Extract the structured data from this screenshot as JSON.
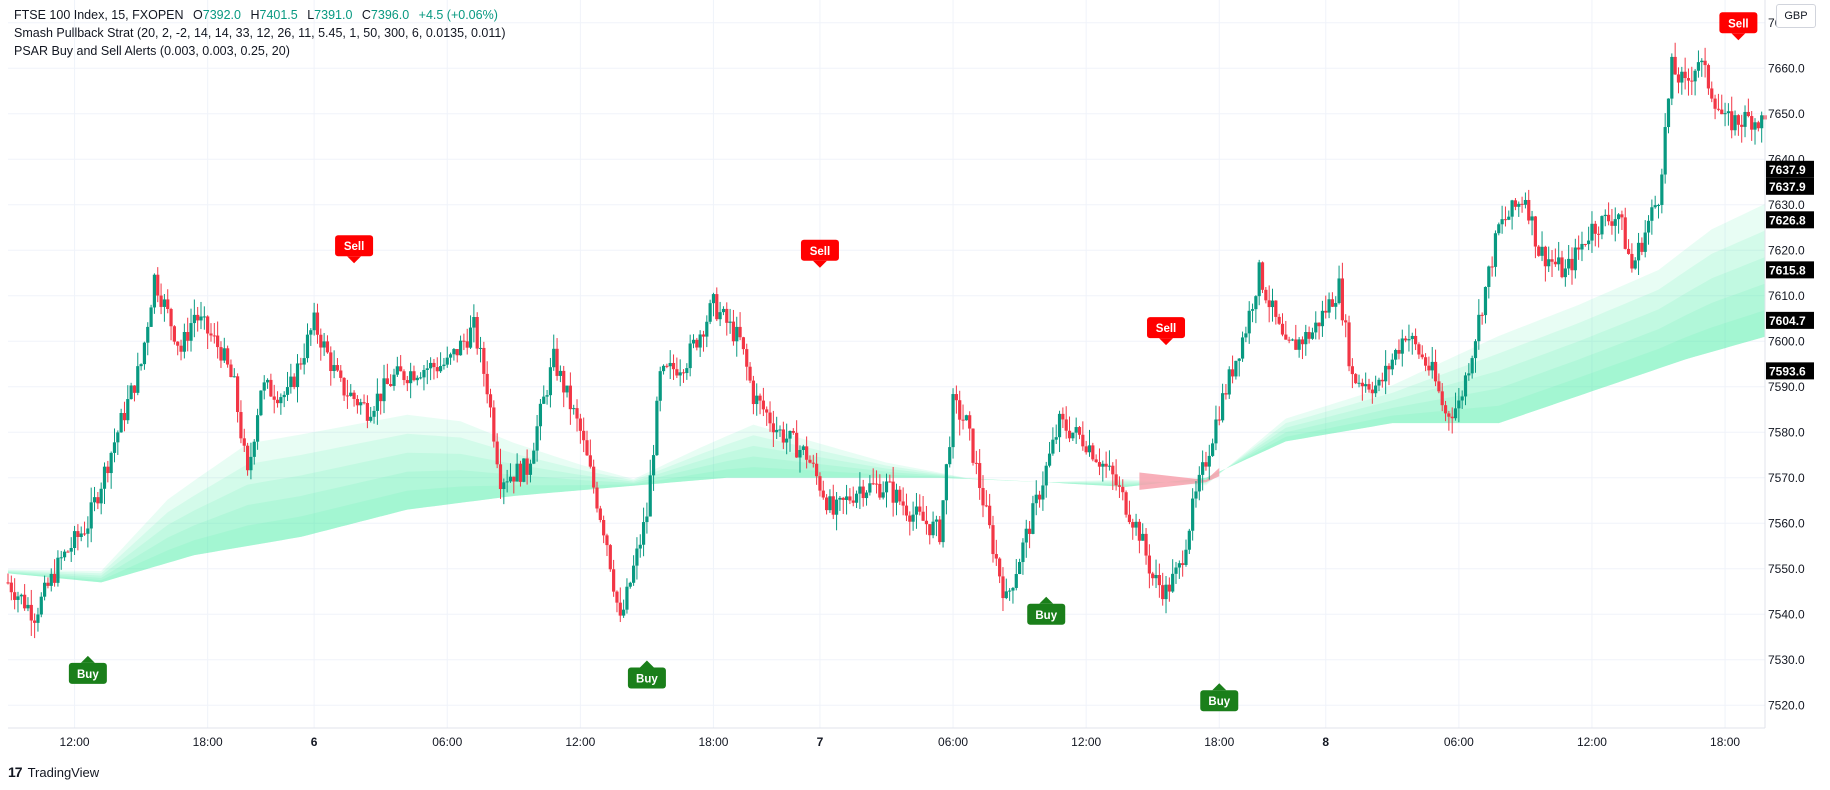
{
  "legend": {
    "symbol": "FTSE 100 Index, 15, FXOPEN",
    "open_label": "O",
    "open": "7392.0",
    "high_label": "H",
    "high": "7401.5",
    "low_label": "L",
    "low": "7391.0",
    "close_label": "C",
    "close": "7396.0",
    "change": "+4.5 (+0.06%)",
    "indicator1": "Smash Pullback Strat (20, 2, -2, 14, 14, 33, 12, 26, 11, 5.45, 1, 50, 300, 6, 0.0135, 0.011)",
    "indicator2": "PSAR Buy and Sell Alerts (0.003, 0.003, 0.25, 20)"
  },
  "currency": "GBP",
  "watermark": "TradingView",
  "colors": {
    "up": "#089981",
    "down": "#f23645",
    "band": "#3ef2a8",
    "band_red": "#f7a1ad",
    "buy": "#1a7f1a",
    "sell": "#ff0000",
    "grid": "#f0f3fa",
    "axis_text": "#131722"
  },
  "chart_data": {
    "type": "candlestick",
    "title": "FTSE 100 Index, 15, FXOPEN",
    "timeframe": "15",
    "ylim": [
      7515,
      7675
    ],
    "y_ticks": [
      7520,
      7530,
      7540,
      7550,
      7560,
      7570,
      7580,
      7590,
      7600,
      7610,
      7620,
      7630,
      7640,
      7650,
      7660,
      7670
    ],
    "y_tick_labels": [
      "7520.0",
      "7530.0",
      "7540.0",
      "7550.0",
      "7560.0",
      "7570.0",
      "7580.0",
      "7590.0",
      "7600.0",
      "7610.0",
      "7620.0",
      "7630.0",
      "7640.0",
      "7650.0",
      "7660.0",
      "7670.0"
    ],
    "x_range": [
      0,
      132
    ],
    "x_ticks": [
      {
        "t": 5,
        "label": "12:00"
      },
      {
        "t": 15,
        "label": "18:00"
      },
      {
        "t": 23,
        "label": "6"
      },
      {
        "t": 33,
        "label": "06:00"
      },
      {
        "t": 43,
        "label": "12:00"
      },
      {
        "t": 53,
        "label": "18:00"
      },
      {
        "t": 61,
        "label": "7"
      },
      {
        "t": 71,
        "label": "06:00"
      },
      {
        "t": 81,
        "label": "12:00"
      },
      {
        "t": 91,
        "label": "18:00"
      },
      {
        "t": 99,
        "label": "8"
      },
      {
        "t": 109,
        "label": "06:00"
      },
      {
        "t": 119,
        "label": "12:00"
      },
      {
        "t": 129,
        "label": "18:00"
      }
    ],
    "price_path": [
      [
        0,
        7547
      ],
      [
        2,
        7540
      ],
      [
        4,
        7552
      ],
      [
        6,
        7560
      ],
      [
        8,
        7578
      ],
      [
        10,
        7595
      ],
      [
        11,
        7614
      ],
      [
        13,
        7598
      ],
      [
        14,
        7606
      ],
      [
        16,
        7598
      ],
      [
        17,
        7590
      ],
      [
        18,
        7570
      ],
      [
        19,
        7590
      ],
      [
        21,
        7588
      ],
      [
        23,
        7604
      ],
      [
        25,
        7590
      ],
      [
        27,
        7585
      ],
      [
        29,
        7592
      ],
      [
        31,
        7594
      ],
      [
        33,
        7595
      ],
      [
        35,
        7603
      ],
      [
        36,
        7590
      ],
      [
        37,
        7570
      ],
      [
        39,
        7572
      ],
      [
        41,
        7596
      ],
      [
        43,
        7580
      ],
      [
        45,
        7556
      ],
      [
        46,
        7538
      ],
      [
        48,
        7562
      ],
      [
        49,
        7592
      ],
      [
        51,
        7596
      ],
      [
        53,
        7608
      ],
      [
        55,
        7600
      ],
      [
        56,
        7588
      ],
      [
        58,
        7580
      ],
      [
        60,
        7575
      ],
      [
        62,
        7562
      ],
      [
        64,
        7568
      ],
      [
        66,
        7568
      ],
      [
        68,
        7562
      ],
      [
        70,
        7558
      ],
      [
        71,
        7586
      ],
      [
        72,
        7582
      ],
      [
        74,
        7555
      ],
      [
        75,
        7543
      ],
      [
        77,
        7562
      ],
      [
        79,
        7582
      ],
      [
        81,
        7578
      ],
      [
        83,
        7570
      ],
      [
        85,
        7558
      ],
      [
        86,
        7548
      ],
      [
        87,
        7545
      ],
      [
        88,
        7550
      ],
      [
        89,
        7563
      ],
      [
        91,
        7585
      ],
      [
        93,
        7603
      ],
      [
        94,
        7615
      ],
      [
        96,
        7598
      ],
      [
        98,
        7602
      ],
      [
        100,
        7612
      ],
      [
        101,
        7592
      ],
      [
        103,
        7590
      ],
      [
        105,
        7602
      ],
      [
        107,
        7593
      ],
      [
        108,
        7584
      ],
      [
        109,
        7586
      ],
      [
        110,
        7598
      ],
      [
        112,
        7625
      ],
      [
        114,
        7632
      ],
      [
        115,
        7620
      ],
      [
        117,
        7615
      ],
      [
        119,
        7625
      ],
      [
        121,
        7628
      ],
      [
        122,
        7616
      ],
      [
        124,
        7632
      ],
      [
        125,
        7660
      ],
      [
        126,
        7656
      ],
      [
        127,
        7662
      ],
      [
        128,
        7655
      ],
      [
        129,
        7648
      ],
      [
        131,
        7649
      ],
      [
        132,
        7648
      ]
    ],
    "band": {
      "name": "Smash Pullback Strat",
      "lower": [
        [
          0,
          7549
        ],
        [
          7,
          7547
        ],
        [
          14,
          7553
        ],
        [
          22,
          7557
        ],
        [
          30,
          7563
        ],
        [
          38,
          7566
        ],
        [
          46,
          7568
        ],
        [
          54,
          7570
        ],
        [
          62,
          7570
        ],
        [
          70,
          7570
        ],
        [
          78,
          7569
        ],
        [
          84,
          7568
        ],
        [
          90,
          7570
        ],
        [
          96,
          7578
        ],
        [
          104,
          7582
        ],
        [
          112,
          7582
        ],
        [
          120,
          7590
        ],
        [
          126,
          7596
        ],
        [
          132,
          7601
        ]
      ],
      "upper": [
        [
          0,
          7550
        ],
        [
          7,
          7550
        ],
        [
          12,
          7568
        ],
        [
          18,
          7582
        ],
        [
          24,
          7585
        ],
        [
          30,
          7588
        ],
        [
          34,
          7586
        ],
        [
          38,
          7580
        ],
        [
          43,
          7574
        ],
        [
          47,
          7570
        ],
        [
          52,
          7578
        ],
        [
          56,
          7584
        ],
        [
          60,
          7580
        ],
        [
          66,
          7574
        ],
        [
          72,
          7570
        ],
        [
          78,
          7569
        ],
        [
          84,
          7570
        ],
        [
          90,
          7568
        ],
        [
          96,
          7584
        ],
        [
          104,
          7592
        ],
        [
          112,
          7605
        ],
        [
          118,
          7612
        ],
        [
          124,
          7620
        ],
        [
          128,
          7630
        ],
        [
          132,
          7636
        ]
      ],
      "red_segment": [
        85,
        91
      ]
    },
    "signals": [
      {
        "type": "Buy",
        "t": 6,
        "price": 7527
      },
      {
        "type": "Sell",
        "t": 26,
        "price": 7621
      },
      {
        "type": "Buy",
        "t": 48,
        "price": 7526
      },
      {
        "type": "Sell",
        "t": 61,
        "price": 7620
      },
      {
        "type": "Buy",
        "t": 78,
        "price": 7540
      },
      {
        "type": "Sell",
        "t": 87,
        "price": 7603
      },
      {
        "type": "Buy",
        "t": 91,
        "price": 7521
      },
      {
        "type": "Sell",
        "t": 130,
        "price": 7670
      }
    ],
    "price_labels": [
      {
        "value": 7637.9,
        "text": "7637.9"
      },
      {
        "value": 7637.9,
        "text": "7637.9",
        "offset_rows": 1
      },
      {
        "value": 7626.8,
        "text": "7626.8"
      },
      {
        "value": 7615.8,
        "text": "7615.8"
      },
      {
        "value": 7604.7,
        "text": "7604.7"
      },
      {
        "value": 7593.6,
        "text": "7593.6"
      }
    ]
  }
}
